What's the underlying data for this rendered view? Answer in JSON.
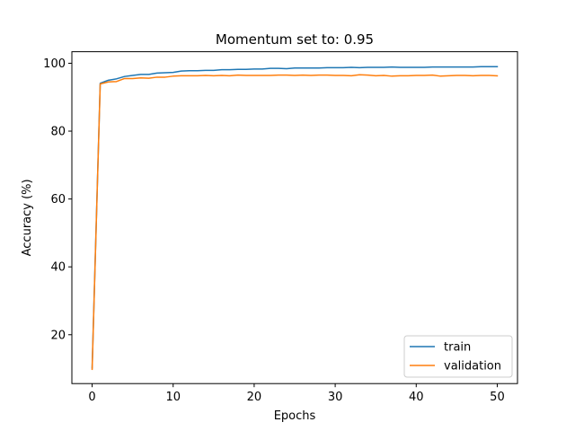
{
  "chart_data": {
    "type": "line",
    "title": "Momentum set to: 0.95",
    "xlabel": "Epochs",
    "ylabel": "Accuracy (%)",
    "xlim": [
      -2.5,
      52.5
    ],
    "ylim": [
      5.6,
      103.4
    ],
    "xticks": [
      0,
      10,
      20,
      30,
      40,
      50
    ],
    "yticks": [
      20,
      40,
      60,
      80,
      100
    ],
    "grid": false,
    "legend_position": "lower-right",
    "x": [
      0,
      1,
      2,
      3,
      4,
      5,
      6,
      7,
      8,
      9,
      10,
      11,
      12,
      13,
      14,
      15,
      16,
      17,
      18,
      19,
      20,
      21,
      22,
      23,
      24,
      25,
      26,
      27,
      28,
      29,
      30,
      31,
      32,
      33,
      34,
      35,
      36,
      37,
      38,
      39,
      40,
      41,
      42,
      43,
      44,
      45,
      46,
      47,
      48,
      49,
      50
    ],
    "series": [
      {
        "name": "train",
        "color": "#1f77b4",
        "values": [
          10.2,
          94.1,
          95.0,
          95.4,
          96.1,
          96.4,
          96.7,
          96.7,
          97.1,
          97.2,
          97.3,
          97.7,
          97.8,
          97.8,
          97.9,
          97.9,
          98.1,
          98.1,
          98.2,
          98.2,
          98.3,
          98.3,
          98.5,
          98.5,
          98.4,
          98.6,
          98.6,
          98.6,
          98.6,
          98.7,
          98.7,
          98.7,
          98.8,
          98.7,
          98.8,
          98.8,
          98.8,
          98.9,
          98.8,
          98.8,
          98.8,
          98.8,
          98.9,
          98.9,
          98.9,
          98.9,
          98.9,
          98.9,
          99.0,
          99.0,
          99.0
        ]
      },
      {
        "name": "validation",
        "color": "#ff7f0e",
        "values": [
          9.8,
          93.9,
          94.5,
          94.6,
          95.5,
          95.5,
          95.7,
          95.6,
          95.9,
          95.9,
          96.2,
          96.3,
          96.3,
          96.3,
          96.4,
          96.3,
          96.4,
          96.3,
          96.5,
          96.4,
          96.4,
          96.4,
          96.4,
          96.5,
          96.5,
          96.4,
          96.5,
          96.4,
          96.5,
          96.5,
          96.4,
          96.4,
          96.3,
          96.6,
          96.5,
          96.3,
          96.4,
          96.2,
          96.3,
          96.3,
          96.4,
          96.4,
          96.5,
          96.2,
          96.3,
          96.4,
          96.4,
          96.3,
          96.4,
          96.4,
          96.3
        ]
      }
    ]
  }
}
